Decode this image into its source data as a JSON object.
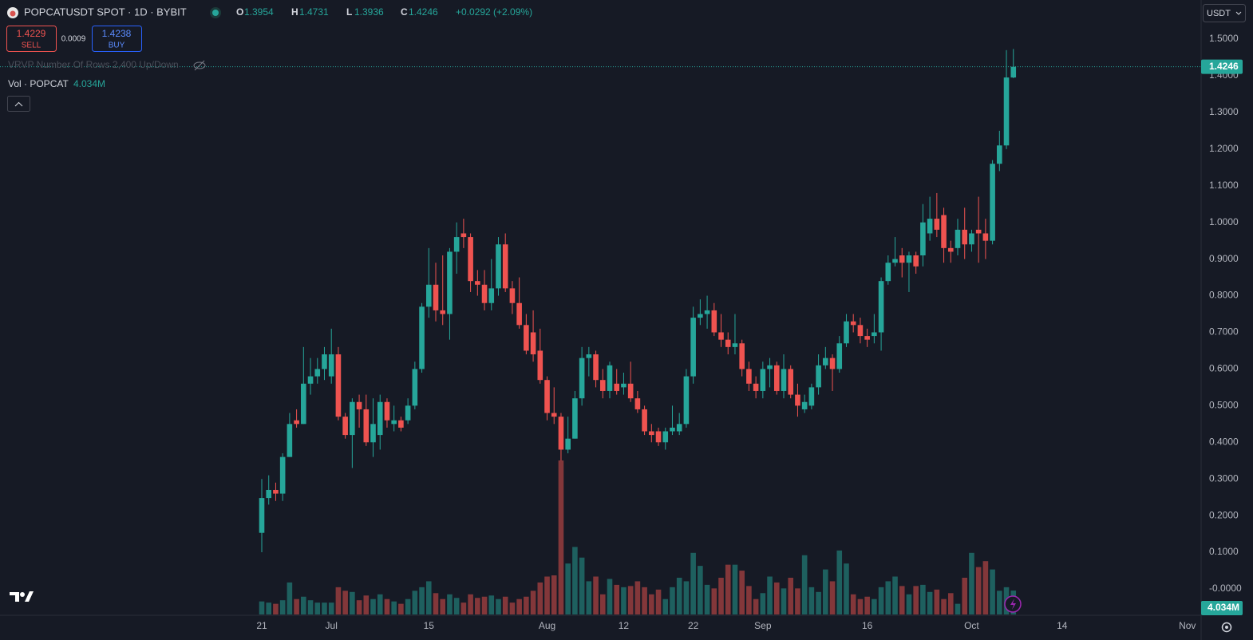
{
  "chart_data": {
    "type": "candlestick",
    "title": "POPCATUSDT SPOT · 1D · BYBIT",
    "ohlc_labels": [
      "O",
      "H",
      "L",
      "C"
    ],
    "change": "+0.0292 (+2.09%)",
    "categories": [
      "Jun 21",
      "Jun 22",
      "Jun 23",
      "Jun 24",
      "Jun 25",
      "Jun 26",
      "Jun 27",
      "Jun 28",
      "Jun 29",
      "Jun 30",
      "Jul 1",
      "Jul 2",
      "Jul 3",
      "Jul 4",
      "Jul 5",
      "Jul 6",
      "Jul 7",
      "Jul 8",
      "Jul 9",
      "Jul 10",
      "Jul 11",
      "Jul 12",
      "Jul 13",
      "Jul 14",
      "Jul 15",
      "Jul 16",
      "Jul 17",
      "Jul 18",
      "Jul 19",
      "Jul 20",
      "Jul 21",
      "Jul 22",
      "Jul 23",
      "Jul 24",
      "Jul 25",
      "Jul 26",
      "Jul 27",
      "Jul 28",
      "Jul 29",
      "Jul 30",
      "Jul 31",
      "Aug 1",
      "Aug 2",
      "Aug 3",
      "Aug 4",
      "Aug 5",
      "Aug 6",
      "Aug 7",
      "Aug 8",
      "Aug 9",
      "Aug 10",
      "Aug 11",
      "Aug 12",
      "Aug 13",
      "Aug 14",
      "Aug 15",
      "Aug 16",
      "Aug 17",
      "Aug 18",
      "Aug 19",
      "Aug 20",
      "Aug 21",
      "Aug 22",
      "Aug 23",
      "Aug 24",
      "Aug 25",
      "Aug 26",
      "Aug 27",
      "Aug 28",
      "Aug 29",
      "Aug 30",
      "Aug 31",
      "Sep 1",
      "Sep 2",
      "Sep 3",
      "Sep 4",
      "Sep 5",
      "Sep 6",
      "Sep 7",
      "Sep 8",
      "Sep 9",
      "Sep 10",
      "Sep 11",
      "Sep 12",
      "Sep 13",
      "Sep 14",
      "Sep 15",
      "Sep 16",
      "Sep 17",
      "Sep 18",
      "Sep 19",
      "Sep 20",
      "Sep 21",
      "Sep 22",
      "Sep 23",
      "Sep 24",
      "Sep 25",
      "Sep 26",
      "Sep 27",
      "Sep 28",
      "Sep 29",
      "Sep 30",
      "Oct 1",
      "Oct 2",
      "Oct 3",
      "Oct 4",
      "Oct 5",
      "Oct 6",
      "Oct 7"
    ],
    "open": [
      0.153,
      0.248,
      0.27,
      0.26,
      0.36,
      0.46,
      0.45,
      0.56,
      0.58,
      0.6,
      0.58,
      0.64,
      0.47,
      0.42,
      0.51,
      0.49,
      0.4,
      0.42,
      0.51,
      0.45,
      0.46,
      0.46,
      0.5,
      0.6,
      0.77,
      0.83,
      0.76,
      0.75,
      0.92,
      0.97,
      0.96,
      0.84,
      0.83,
      0.78,
      0.82,
      0.94,
      0.82,
      0.78,
      0.72,
      0.7,
      0.65,
      0.57,
      0.48,
      0.47,
      0.38,
      0.41,
      0.52,
      0.63,
      0.64,
      0.57,
      0.54,
      0.56,
      0.55,
      0.56,
      0.52,
      0.49,
      0.43,
      0.43,
      0.4,
      0.43,
      0.43,
      0.45,
      0.58,
      0.74,
      0.75,
      0.76,
      0.7,
      0.68,
      0.66,
      0.67,
      0.6,
      0.56,
      0.54,
      0.6,
      0.61,
      0.54,
      0.6,
      0.53,
      0.49,
      0.5,
      0.55,
      0.61,
      0.63,
      0.6,
      0.67,
      0.73,
      0.72,
      0.69,
      0.69,
      0.7,
      0.84,
      0.89,
      0.91,
      0.89,
      0.91,
      0.91,
      0.97,
      1.01,
      1.02,
      0.93,
      0.93,
      0.98,
      0.94,
      0.98,
      0.97,
      0.95,
      1.16,
      1.21,
      1.3954
    ],
    "high": [
      0.3,
      0.31,
      0.29,
      0.37,
      0.48,
      0.49,
      0.66,
      0.63,
      0.63,
      0.66,
      0.71,
      0.66,
      0.48,
      0.52,
      0.53,
      0.53,
      0.52,
      0.53,
      0.52,
      0.5,
      0.47,
      0.52,
      0.62,
      0.78,
      0.93,
      0.89,
      0.91,
      0.93,
      1.0,
      1.01,
      0.97,
      0.87,
      0.87,
      0.9,
      0.96,
      0.97,
      0.84,
      0.85,
      0.75,
      0.76,
      0.71,
      0.58,
      0.55,
      0.48,
      0.47,
      0.54,
      0.66,
      0.66,
      0.65,
      0.6,
      0.62,
      0.6,
      0.59,
      0.62,
      0.54,
      0.5,
      0.45,
      0.44,
      0.44,
      0.5,
      0.48,
      0.6,
      0.77,
      0.79,
      0.8,
      0.78,
      0.75,
      0.7,
      0.75,
      0.68,
      0.62,
      0.58,
      0.62,
      0.63,
      0.62,
      0.64,
      0.61,
      0.56,
      0.53,
      0.56,
      0.64,
      0.66,
      0.64,
      0.69,
      0.75,
      0.75,
      0.74,
      0.71,
      0.75,
      0.85,
      0.91,
      0.96,
      0.93,
      0.92,
      0.92,
      1.05,
      1.07,
      1.08,
      1.04,
      0.95,
      1.01,
      1.04,
      0.98,
      1.07,
      1.01,
      1.17,
      1.25,
      1.47,
      1.4731
    ],
    "low": [
      0.1,
      0.23,
      0.24,
      0.24,
      0.36,
      0.44,
      0.45,
      0.53,
      0.56,
      0.57,
      0.56,
      0.46,
      0.41,
      0.33,
      0.44,
      0.39,
      0.36,
      0.38,
      0.44,
      0.43,
      0.43,
      0.45,
      0.49,
      0.59,
      0.74,
      0.73,
      0.72,
      0.68,
      0.86,
      0.93,
      0.81,
      0.8,
      0.76,
      0.76,
      0.8,
      0.81,
      0.75,
      0.71,
      0.64,
      0.62,
      0.56,
      0.46,
      0.45,
      0.35,
      0.37,
      0.41,
      0.5,
      0.58,
      0.55,
      0.52,
      0.52,
      0.53,
      0.53,
      0.51,
      0.48,
      0.42,
      0.4,
      0.39,
      0.38,
      0.42,
      0.42,
      0.44,
      0.56,
      0.72,
      0.71,
      0.69,
      0.66,
      0.64,
      0.64,
      0.58,
      0.54,
      0.52,
      0.52,
      0.55,
      0.53,
      0.52,
      0.52,
      0.47,
      0.48,
      0.49,
      0.53,
      0.6,
      0.54,
      0.59,
      0.66,
      0.7,
      0.67,
      0.66,
      0.67,
      0.65,
      0.83,
      0.88,
      0.85,
      0.81,
      0.86,
      0.88,
      0.95,
      0.96,
      0.89,
      0.89,
      0.91,
      0.9,
      0.92,
      0.89,
      0.9,
      0.94,
      1.14,
      1.2,
      1.3936
    ],
    "close": [
      0.248,
      0.27,
      0.26,
      0.36,
      0.45,
      0.45,
      0.56,
      0.58,
      0.6,
      0.64,
      0.64,
      0.47,
      0.42,
      0.51,
      0.49,
      0.4,
      0.45,
      0.51,
      0.46,
      0.46,
      0.44,
      0.5,
      0.6,
      0.77,
      0.83,
      0.76,
      0.75,
      0.92,
      0.96,
      0.96,
      0.84,
      0.83,
      0.78,
      0.82,
      0.94,
      0.82,
      0.78,
      0.72,
      0.65,
      0.64,
      0.57,
      0.48,
      0.47,
      0.38,
      0.41,
      0.52,
      0.63,
      0.64,
      0.57,
      0.54,
      0.61,
      0.54,
      0.56,
      0.52,
      0.49,
      0.43,
      0.42,
      0.4,
      0.43,
      0.44,
      0.45,
      0.58,
      0.74,
      0.75,
      0.76,
      0.7,
      0.68,
      0.66,
      0.67,
      0.6,
      0.56,
      0.54,
      0.6,
      0.61,
      0.54,
      0.6,
      0.53,
      0.5,
      0.51,
      0.55,
      0.61,
      0.63,
      0.6,
      0.67,
      0.73,
      0.72,
      0.69,
      0.68,
      0.7,
      0.84,
      0.89,
      0.9,
      0.89,
      0.91,
      0.88,
      1.0,
      1.01,
      0.98,
      0.93,
      0.92,
      0.98,
      0.94,
      0.97,
      0.97,
      0.95,
      1.16,
      1.21,
      1.3954,
      1.4246
    ],
    "up_color": "#26a69a",
    "down_color": "#ef5350",
    "volume": {
      "name": "Vol · POPCAT",
      "values": [
        2.2,
        2.0,
        1.8,
        2.4,
        5.4,
        2.6,
        3.0,
        2.4,
        2.0,
        2.0,
        2.0,
        4.6,
        4.0,
        3.8,
        2.4,
        3.2,
        2.6,
        3.4,
        2.6,
        2.2,
        1.8,
        2.6,
        4.0,
        4.6,
        5.6,
        3.6,
        2.6,
        3.4,
        2.8,
        2.0,
        3.4,
        2.8,
        3.0,
        3.2,
        2.6,
        3.0,
        2.0,
        2.6,
        3.0,
        4.0,
        5.4,
        6.4,
        6.6,
        26.0,
        8.6,
        11.4,
        9.6,
        5.6,
        6.4,
        3.4,
        6.0,
        5.0,
        4.6,
        4.8,
        5.6,
        4.6,
        3.4,
        4.2,
        2.6,
        4.6,
        6.2,
        5.6,
        10.4,
        8.2,
        5.0,
        4.4,
        6.2,
        8.4,
        8.4,
        7.4,
        4.8,
        2.6,
        3.6,
        6.4,
        5.4,
        4.4,
        6.2,
        4.4,
        10.0,
        4.6,
        3.8,
        7.6,
        5.6,
        10.8,
        8.6,
        3.4,
        2.6,
        3.0,
        2.6,
        4.6,
        5.6,
        6.4,
        4.8,
        3.4,
        4.8,
        5.0,
        3.8,
        4.2,
        2.6,
        3.6,
        1.8,
        6.2,
        10.4,
        8.0,
        9.0,
        7.6,
        4.0,
        4.6,
        4.034
      ],
      "last_value_label": "4.034M",
      "up_color": "rgba(38,166,154,0.5)",
      "down_color": "rgba(239,83,80,0.5)"
    },
    "ylim": [
      -0.0697,
      1.6068
    ],
    "yticks": [
      {
        "value": 1.5,
        "label": "1.5000"
      },
      {
        "value": 1.4,
        "label": "1.4000"
      },
      {
        "value": 1.3,
        "label": "1.3000"
      },
      {
        "value": 1.2,
        "label": "1.2000"
      },
      {
        "value": 1.1,
        "label": "1.1000"
      },
      {
        "value": 1,
        "label": "1.0000"
      },
      {
        "value": 0.9,
        "label": "0.9000"
      },
      {
        "value": 0.8,
        "label": "0.8000"
      },
      {
        "value": 0.7,
        "label": "0.7000"
      },
      {
        "value": 0.6,
        "label": "0.6000"
      },
      {
        "value": 0.5,
        "label": "0.5000"
      },
      {
        "value": 0.4,
        "label": "0.4000"
      },
      {
        "value": 0.3,
        "label": "0.3000"
      },
      {
        "value": 0.2,
        "label": "0.2000"
      },
      {
        "value": 0.1,
        "label": "0.1000"
      },
      {
        "value": 0,
        "label": "-0.0000"
      }
    ],
    "xticks": [
      {
        "value": "Jun 21",
        "label": "21"
      },
      {
        "value": "Jul 1",
        "label": "Jul"
      },
      {
        "value": "Jul 15",
        "label": "15"
      },
      {
        "value": "Aug 1",
        "label": "Aug"
      },
      {
        "value": "Aug 12",
        "label": "12"
      },
      {
        "value": "Aug 22",
        "label": "22"
      },
      {
        "value": "Sep 1",
        "label": "Sep"
      },
      {
        "value": "Sep 16",
        "label": "16"
      },
      {
        "value": "Oct 1",
        "label": "Oct"
      },
      {
        "value": "Oct 14",
        "label": "14"
      },
      {
        "value": "Nov 1",
        "label": "Nov"
      }
    ],
    "grid": false
  },
  "ui": {
    "sell_price": 1.4229,
    "sell_label": "SELL",
    "spread": 0.0009,
    "buy_price": 1.4238,
    "buy_label": "BUY",
    "vrvp": "VRVP Number Of Rows 2,400 Up/Down",
    "currency": "USDT"
  }
}
